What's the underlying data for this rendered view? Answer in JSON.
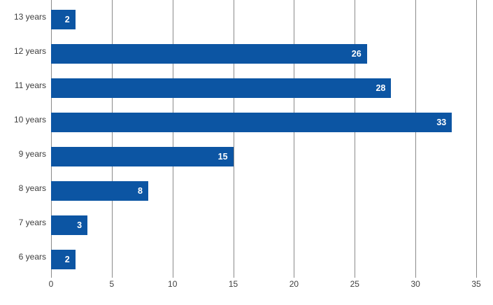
{
  "chart_data": {
    "type": "bar",
    "orientation": "horizontal",
    "title": "",
    "xlabel": "",
    "ylabel": "",
    "categories": [
      "13 years",
      "12 years",
      "11 years",
      "10 years",
      "9 years",
      "8 years",
      "7 years",
      "6 years"
    ],
    "values": [
      2,
      26,
      28,
      33,
      15,
      8,
      3,
      2
    ],
    "xlim": [
      0,
      35
    ],
    "x_ticks": [
      0,
      5,
      10,
      15,
      20,
      25,
      30,
      35
    ],
    "grid": true,
    "legend": false,
    "value_label_position": "inside-end"
  },
  "colors": {
    "bar": "#0c55a3",
    "gridline": "#8a8a8a",
    "tick_label_text": "#404040",
    "category_label_text": "#3d3d3d",
    "value_label_text": "#ffffff",
    "background": "#ffffff"
  }
}
